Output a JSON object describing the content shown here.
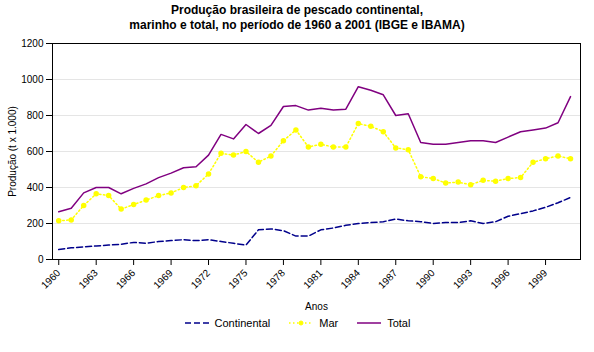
{
  "chart_data": {
    "type": "line",
    "title": "Produção brasileira de pescado continental,\nmarinho e total, no período de 1960 a 2001 (IBGE e IBAMA)",
    "x_label": "Anos",
    "y_label": "Produção (t x 1.000)",
    "x": [
      1960,
      1961,
      1962,
      1963,
      1964,
      1965,
      1966,
      1967,
      1968,
      1969,
      1970,
      1971,
      1972,
      1973,
      1974,
      1975,
      1976,
      1977,
      1978,
      1979,
      1980,
      1981,
      1982,
      1983,
      1984,
      1985,
      1986,
      1987,
      1988,
      1989,
      1990,
      1991,
      1992,
      1993,
      1994,
      1995,
      1996,
      1997,
      1998,
      1999,
      2000,
      2001
    ],
    "series": [
      {
        "name": "Continental",
        "color": "#00008B",
        "line_style": "dashed",
        "marker": "none",
        "values": [
          55,
          65,
          70,
          75,
          80,
          85,
          95,
          90,
          100,
          105,
          110,
          105,
          110,
          100,
          90,
          80,
          165,
          170,
          160,
          130,
          130,
          165,
          175,
          190,
          200,
          205,
          210,
          225,
          215,
          210,
          200,
          205,
          205,
          215,
          200,
          210,
          240,
          255,
          270,
          290,
          315,
          345
        ]
      },
      {
        "name": "Mar",
        "color": "#FFFF00",
        "line_style": "dotted",
        "marker": "dot",
        "values": [
          215,
          220,
          300,
          365,
          355,
          280,
          305,
          330,
          355,
          370,
          400,
          410,
          475,
          590,
          580,
          600,
          540,
          575,
          660,
          720,
          625,
          640,
          625,
          625,
          755,
          740,
          710,
          620,
          610,
          460,
          450,
          425,
          430,
          415,
          440,
          435,
          450,
          455,
          540,
          560,
          575,
          560
        ]
      },
      {
        "name": "Total",
        "color": "#800080",
        "line_style": "solid",
        "marker": "none",
        "values": [
          265,
          285,
          370,
          400,
          400,
          365,
          395,
          420,
          455,
          480,
          510,
          515,
          580,
          695,
          670,
          750,
          700,
          745,
          850,
          855,
          830,
          840,
          830,
          835,
          960,
          940,
          915,
          800,
          810,
          650,
          640,
          640,
          650,
          660,
          660,
          650,
          680,
          710,
          720,
          730,
          760,
          905
        ]
      }
    ],
    "xlim": [
      1959.5,
      2001.8
    ],
    "xticks": [
      1960,
      1963,
      1966,
      1969,
      1972,
      1975,
      1978,
      1981,
      1984,
      1987,
      1990,
      1993,
      1996,
      1999
    ],
    "ylim": [
      0,
      1200
    ],
    "yticks": [
      0,
      200,
      400,
      600,
      800,
      1000,
      1200
    ],
    "grid": true,
    "legend": "bottom"
  }
}
